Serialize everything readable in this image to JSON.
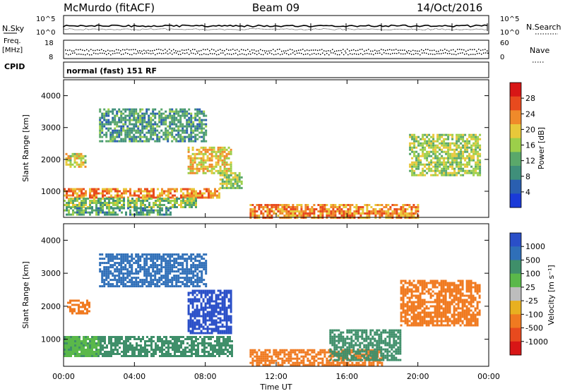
{
  "header": {
    "station": "McMurdo (fitACF)",
    "beam": "Beam 09",
    "date": "14/Oct/2016"
  },
  "left_labels": {
    "nsky": "N.Sky",
    "freq_line1": "Freq.",
    "freq_line2": "[MHz]",
    "cpid": "CPID"
  },
  "right_labels": {
    "nsearch": "N.Search",
    "nave": "Nave"
  },
  "noise_panel": {
    "left_ticks": [
      "10^5",
      "10^0"
    ],
    "right_ticks": [
      "10^5",
      "10^0"
    ]
  },
  "freq_panel": {
    "left_ticks": [
      "18",
      "8"
    ],
    "right_ticks": [
      "60",
      "0"
    ]
  },
  "cpid_text": "normal (fast) 151 RF",
  "x_axis": {
    "label": "Time UT",
    "ticks": [
      "00:00",
      "04:00",
      "08:00",
      "12:00",
      "16:00",
      "20:00",
      "00:00"
    ]
  },
  "y_axis": {
    "label": "Slant Range [km]",
    "ticks": [
      "1000",
      "2000",
      "3000",
      "4000"
    ]
  },
  "power_colorbar": {
    "title": "Power [dB]",
    "ticks": [
      "4",
      "8",
      "12",
      "16",
      "20",
      "24",
      "28"
    ],
    "colors": [
      "#1a3ad8",
      "#2a5fb0",
      "#3f8f7a",
      "#5aa86a",
      "#9ccf4a",
      "#e8c83a",
      "#f08a2a",
      "#e84a1e",
      "#d81616"
    ]
  },
  "velocity_colorbar": {
    "title": "Velocity [m s⁻¹]",
    "ticks": [
      "1000",
      "500",
      "100",
      "25",
      "-25",
      "-100",
      "-500",
      "-1000"
    ],
    "colors": [
      "#2a4fc8",
      "#2f6fb8",
      "#3f8f6a",
      "#5ab84a",
      "#bdbdbd",
      "#e8b020",
      "#f07a20",
      "#e84a1e",
      "#d81616"
    ]
  },
  "chart_data": [
    {
      "type": "heatmap",
      "title": "",
      "xlabel": "Time UT",
      "ylabel": "Slant Range [km]",
      "colorbar_label": "Power [dB]",
      "xlim_hours": [
        0,
        24
      ],
      "ylim_km": [
        180,
        4500
      ],
      "regions": [
        {
          "t0": 0.0,
          "t1": 8.8,
          "r0": 800,
          "r1": 1100,
          "value": 24
        },
        {
          "t0": 0.0,
          "t1": 7.5,
          "r0": 500,
          "r1": 800,
          "value": 14
        },
        {
          "t0": 0.0,
          "t1": 6.0,
          "r0": 250,
          "r1": 500,
          "value": 10
        },
        {
          "t0": 0.1,
          "t1": 1.2,
          "r0": 1800,
          "r1": 2200,
          "value": 18
        },
        {
          "t0": 7.0,
          "t1": 9.5,
          "r0": 1600,
          "r1": 2400,
          "value": 20
        },
        {
          "t0": 8.8,
          "t1": 10.0,
          "r0": 1100,
          "r1": 1600,
          "value": 16
        },
        {
          "t0": 10.5,
          "t1": 20.0,
          "r0": 200,
          "r1": 600,
          "value": 24
        },
        {
          "t0": 19.5,
          "t1": 23.5,
          "r0": 1500,
          "r1": 2800,
          "value": 16
        },
        {
          "t0": 2.0,
          "t1": 8.0,
          "r0": 2600,
          "r1": 3600,
          "value": 10
        }
      ]
    },
    {
      "type": "heatmap",
      "title": "",
      "xlabel": "Time UT",
      "ylabel": "Slant Range [km]",
      "colorbar_label": "Velocity [m s⁻¹]",
      "xlim_hours": [
        0,
        24
      ],
      "ylim_km": [
        180,
        4500
      ],
      "regions": [
        {
          "t0": 0.0,
          "t1": 9.5,
          "r0": 500,
          "r1": 1100,
          "value": 100
        },
        {
          "t0": 0.0,
          "t1": 2.0,
          "r0": 500,
          "r1": 1100,
          "value": 25
        },
        {
          "t0": 0.2,
          "t1": 1.5,
          "r0": 1800,
          "r1": 2200,
          "value": -500
        },
        {
          "t0": 7.0,
          "t1": 9.5,
          "r0": 1200,
          "r1": 2500,
          "value": 1000
        },
        {
          "t0": 10.5,
          "t1": 18.0,
          "r0": 200,
          "r1": 700,
          "value": -500
        },
        {
          "t0": 15.0,
          "t1": 19.0,
          "r0": 400,
          "r1": 1300,
          "value": 100
        },
        {
          "t0": 19.0,
          "t1": 23.5,
          "r0": 1400,
          "r1": 2800,
          "value": -500
        },
        {
          "t0": 2.0,
          "t1": 8.0,
          "r0": 2600,
          "r1": 3600,
          "value": 500
        }
      ]
    }
  ]
}
